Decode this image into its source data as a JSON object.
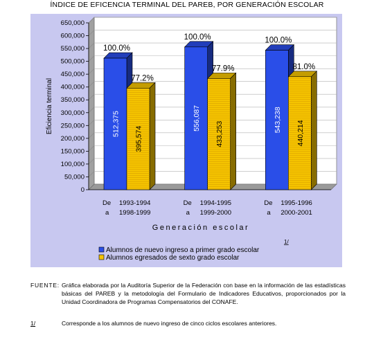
{
  "page": {
    "title": "ÍNDICE DE EFICENCIA TERMINAL DEL PAREB, POR GENERACIÓN ESCOLAR",
    "source_label": "FUENTE:",
    "source_text": "Gráfica elaborada por la Auditoría Superior de la Federación con base en la información de las estadísticas básicas del PAREB y la metodología del Formulario de Indicadores Educativos, proporcionados por la Unidad Coordinadora de Programas Compensatorios del CONAFE.",
    "note_label": "1/",
    "note_text": "Corresponde a los alumnos de nuevo ingreso de cinco ciclos escolares anteriores.",
    "footnote_mark": "1/"
  },
  "colors": {
    "panel_bg": "#c8c8f0",
    "series_blue": "#2a4ee8",
    "series_yellow": "#f5c400"
  },
  "chart_data": {
    "type": "bar",
    "title": "ÍNDICE DE EFICENCIA TERMINAL DEL PAREB, POR GENERACIÓN ESCOLAR",
    "ylabel": "Eficiencia terminal",
    "xlabel": "Generación escolar",
    "ylim": [
      0,
      650000
    ],
    "ytick_step": 50000,
    "ytick_labels": [
      "0",
      "50,000",
      "100,000",
      "150,000",
      "200,000",
      "250,000",
      "300,000",
      "350,000",
      "400,000",
      "450,000",
      "500,000",
      "550,000",
      "600,000",
      "650,000"
    ],
    "categories": [
      {
        "de": "De",
        "a": "a",
        "from": "1993-1994",
        "to": "1998-1999"
      },
      {
        "de": "De",
        "a": "a",
        "from": "1994-1995",
        "to": "1999-2000"
      },
      {
        "de": "De",
        "a": "a",
        "from": "1995-1996",
        "to": "2000-2001"
      }
    ],
    "series": [
      {
        "name": "Alumnos de nuevo ingreso a primer  grado escolar",
        "values": [
          512375,
          556087,
          543238
        ],
        "value_labels": [
          "512,375",
          "556,087",
          "543,238"
        ],
        "pct_labels": [
          "100.0%",
          "100.0%",
          "100.0%"
        ]
      },
      {
        "name": "Alumnos egresados de sexto grado escolar",
        "values": [
          395574,
          433253,
          440214
        ],
        "value_labels": [
          "395,574",
          "433,253",
          "440,214"
        ],
        "pct_labels": [
          "77.2%",
          "77.9%",
          "81.0%"
        ]
      }
    ],
    "grid": true,
    "legend_position": "bottom-left"
  }
}
